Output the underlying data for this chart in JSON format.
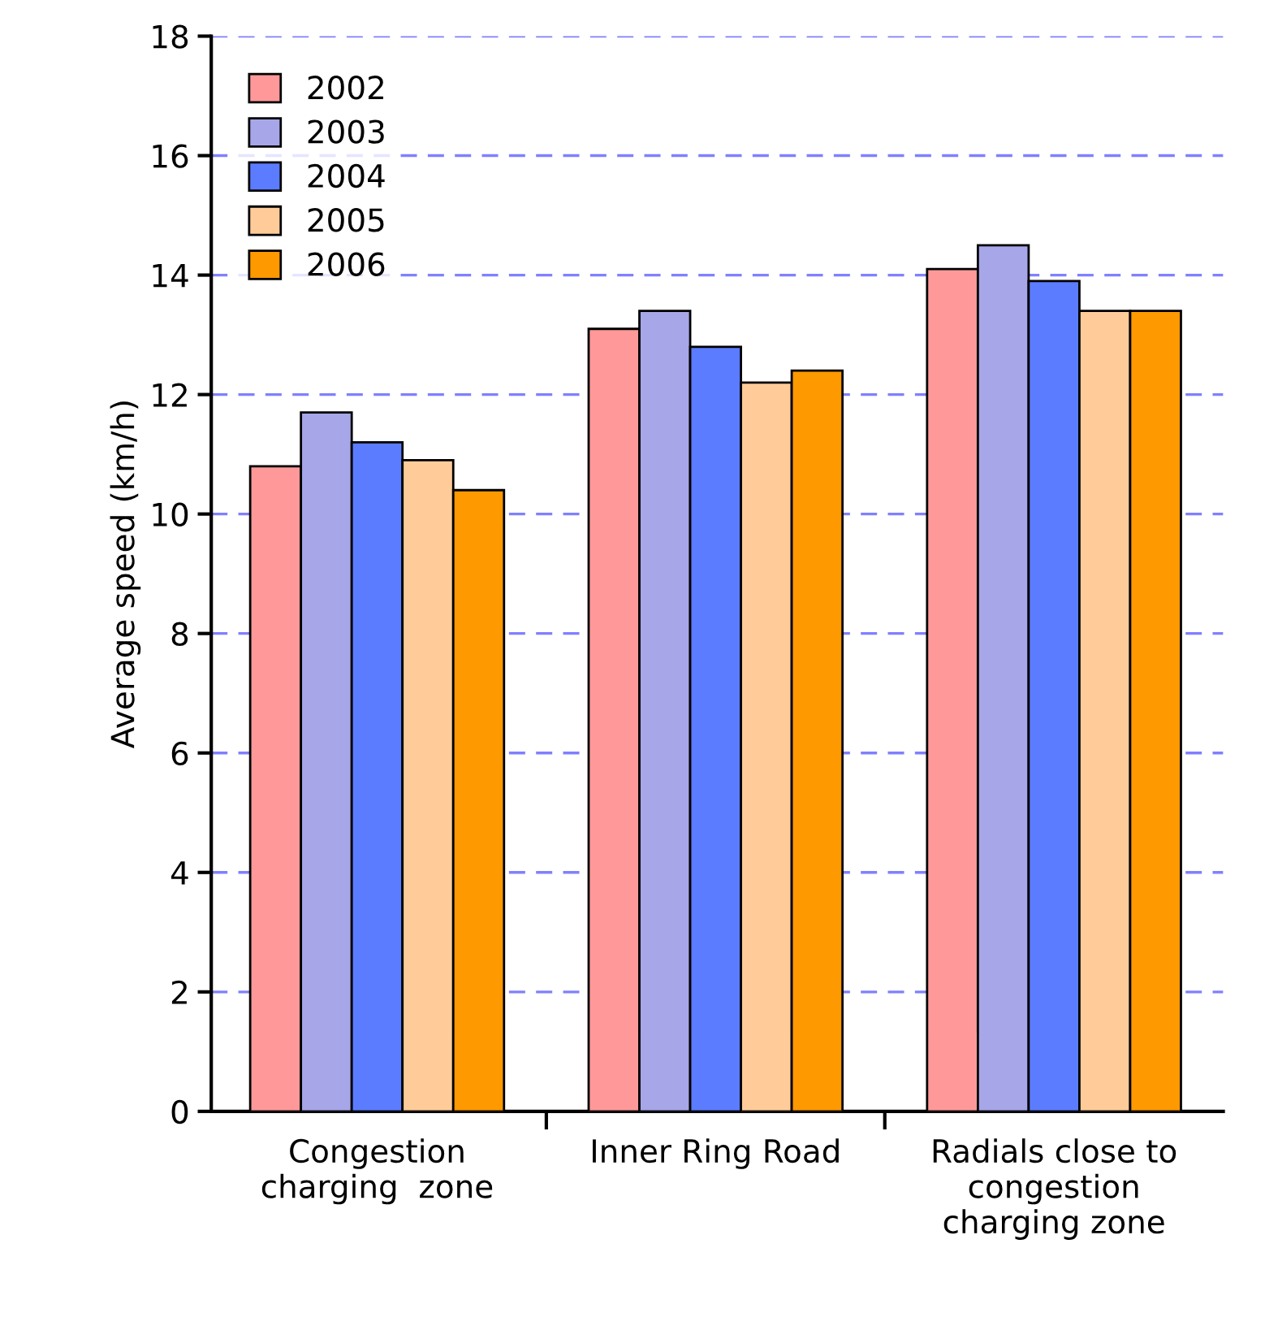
{
  "chart_data": {
    "type": "bar",
    "ylabel": "Average speed (km/h)",
    "categories": [
      "Congestion\ncharging  zone",
      "Inner Ring Road",
      "Radials close to\ncongestion\ncharging zone"
    ],
    "series": [
      {
        "name": "2002",
        "color": "#ff9999",
        "values": [
          10.8,
          13.1,
          14.1
        ]
      },
      {
        "name": "2003",
        "color": "#a6a6e8",
        "values": [
          11.7,
          13.4,
          14.5
        ]
      },
      {
        "name": "2004",
        "color": "#5b7cff",
        "values": [
          11.2,
          12.8,
          13.9
        ]
      },
      {
        "name": "2005",
        "color": "#ffcc99",
        "values": [
          10.9,
          12.2,
          13.4
        ]
      },
      {
        "name": "2006",
        "color": "#ff9900",
        "values": [
          10.4,
          12.4,
          13.4
        ]
      }
    ],
    "ylim": [
      0,
      18
    ],
    "yticks": [
      0,
      2,
      4,
      6,
      8,
      10,
      12,
      14,
      16,
      18
    ],
    "grid": "y",
    "legend": "top left"
  }
}
